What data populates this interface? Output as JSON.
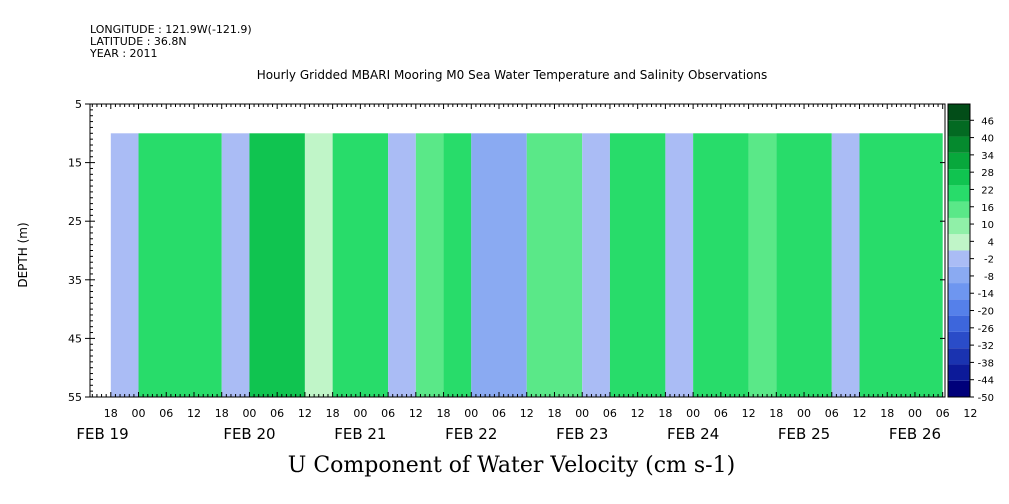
{
  "header": {
    "longitude": "LONGITUDE : 121.9W(-121.9)",
    "latitude": "LATITUDE : 36.8N",
    "year": "YEAR : 2011"
  },
  "chart_data": {
    "type": "heatmap",
    "title": "Hourly Gridded MBARI Mooring M0 Sea Water Temperature and Salinity Observations",
    "xlabel": "U Component of Water Velocity (cm s-1)",
    "ylabel": "DEPTH (m)",
    "ylim": [
      55,
      5
    ],
    "y_ticks": [
      5,
      15,
      25,
      35,
      45,
      55
    ],
    "data_depth_range": [
      10,
      55
    ],
    "hour_tick_labels": [
      "18",
      "00",
      "06",
      "12",
      "18",
      "00",
      "06",
      "12",
      "18",
      "00",
      "06",
      "12",
      "18",
      "00",
      "06",
      "12",
      "18",
      "00",
      "06",
      "12",
      "18",
      "00",
      "06",
      "12",
      "18",
      "00",
      "06",
      "12",
      "18",
      "00",
      "06",
      "12"
    ],
    "date_labels": [
      "FEB 19",
      "FEB 20",
      "FEB 21",
      "FEB 22",
      "FEB 23",
      "FEB 24",
      "FEB 25",
      "FEB 26"
    ],
    "colorbar": {
      "levels": [
        -50,
        -44,
        -38,
        -32,
        -26,
        -20,
        -14,
        -8,
        -2,
        4,
        10,
        16,
        22,
        28,
        34,
        40,
        46
      ],
      "labels": [
        "46",
        "40",
        "34",
        "28",
        "22",
        "16",
        "10",
        "4",
        "-2",
        "-8",
        "-14",
        "-20",
        "-26",
        "-32",
        "-38",
        "-44",
        "-50"
      ],
      "colors": [
        "#00007a",
        "#0c1a99",
        "#1a33b0",
        "#2a4cc8",
        "#3d66dc",
        "#5580ea",
        "#6e96f0",
        "#8aaaf2",
        "#aabcf5",
        "#c0f5c8",
        "#90f0a8",
        "#5ae888",
        "#28dc6a",
        "#10c450",
        "#08a83c",
        "#058a2e",
        "#036a22",
        "#024d18"
      ]
    },
    "time_series": {
      "time_units": "hours since FEB 19 00",
      "segments": [
        {
          "t": [
            -6,
            0
          ],
          "u": -8
        },
        {
          "t": [
            0,
            18
          ],
          "u": 16
        },
        {
          "t": [
            18,
            24
          ],
          "u": -4
        },
        {
          "t": [
            24,
            36
          ],
          "u": 22
        },
        {
          "t": [
            36,
            42
          ],
          "u": -2
        },
        {
          "t": [
            42,
            54
          ],
          "u": 16
        },
        {
          "t": [
            54,
            60
          ],
          "u": -4
        },
        {
          "t": [
            60,
            66
          ],
          "u": 10
        },
        {
          "t": [
            66,
            72
          ],
          "u": 16
        },
        {
          "t": [
            72,
            84
          ],
          "u": -10
        },
        {
          "t": [
            84,
            96
          ],
          "u": 14
        },
        {
          "t": [
            96,
            102
          ],
          "u": -6
        },
        {
          "t": [
            102,
            114
          ],
          "u": 16
        },
        {
          "t": [
            114,
            120
          ],
          "u": -4
        },
        {
          "t": [
            120,
            132
          ],
          "u": 20
        },
        {
          "t": [
            132,
            138
          ],
          "u": 10
        },
        {
          "t": [
            138,
            150
          ],
          "u": 16
        },
        {
          "t": [
            150,
            156
          ],
          "u": -6
        },
        {
          "t": [
            156,
            174
          ],
          "u": 18
        }
      ]
    }
  }
}
